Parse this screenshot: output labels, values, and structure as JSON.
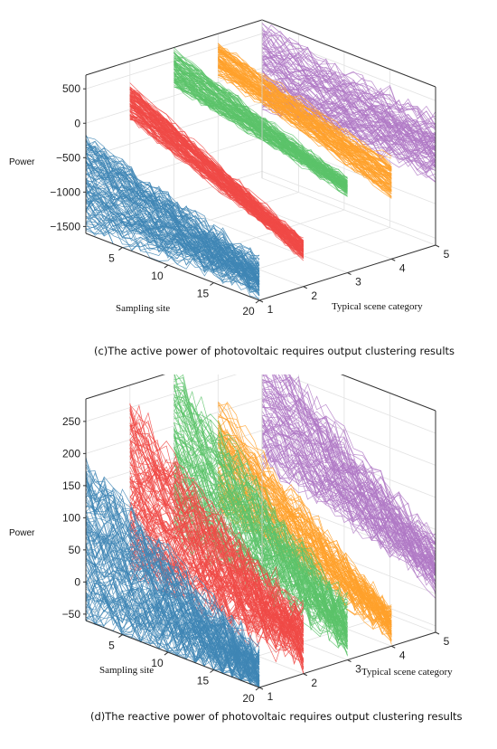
{
  "chart_data": [
    {
      "type": "line",
      "caption": "(c)The active power of photovoltaic requires output clustering results",
      "xlabel": "Sampling site",
      "ylabel": "Power",
      "zlabel": "Typical scene category",
      "x_ticks": [
        "5",
        "10",
        "15",
        "20"
      ],
      "y_ticks": [
        "500",
        "0",
        "−500",
        "−1000",
        "−1500"
      ],
      "z_ticks": [
        "1",
        "2",
        "3",
        "4",
        "5"
      ],
      "xlim": [
        1,
        20
      ],
      "ylim": [
        -1600,
        700
      ],
      "zlim": [
        1,
        5
      ],
      "grid": true,
      "series": [
        {
          "category": 1,
          "color": "#3f86b5",
          "start_range": [
            -1500,
            -250
          ],
          "end_range": [
            -1500,
            -1050
          ],
          "line_count": 110
        },
        {
          "category": 2,
          "color": "#f04a46",
          "start_range": [
            -150,
            350
          ],
          "end_range": [
            -1200,
            -900
          ],
          "line_count": 110
        },
        {
          "category": 3,
          "color": "#5cc36a",
          "start_range": [
            150,
            650
          ],
          "end_range": [
            -450,
            -250
          ],
          "line_count": 100
        },
        {
          "category": 4,
          "color": "#ffa12b",
          "start_range": [
            100,
            550
          ],
          "end_range": [
            -750,
            -150
          ],
          "line_count": 90
        },
        {
          "category": 5,
          "color": "#b079c6",
          "start_range": [
            -500,
            600
          ],
          "end_range": [
            -600,
            300
          ],
          "line_count": 90
        }
      ]
    },
    {
      "type": "line",
      "caption": "(d)The reactive power of photovoltaic requires output clustering results",
      "xlabel": "Sampling site",
      "ylabel": "Power",
      "zlabel": "Typical scene category",
      "x_ticks": [
        "5",
        "10",
        "15",
        "20"
      ],
      "y_ticks": [
        "250",
        "200",
        "150",
        "100",
        "50",
        "0",
        "−50"
      ],
      "z_ticks": [
        "1",
        "2",
        "3",
        "4",
        "5"
      ],
      "xlim": [
        1,
        20
      ],
      "ylim": [
        -60,
        285
      ],
      "zlim": [
        1,
        5
      ],
      "grid": true,
      "series": [
        {
          "category": 1,
          "color": "#3f86b5",
          "start_range": [
            -60,
            180
          ],
          "end_range": [
            -55,
            -20
          ],
          "line_count": 110
        },
        {
          "category": 2,
          "color": "#f04a46",
          "start_range": [
            10,
            250
          ],
          "end_range": [
            -45,
            35
          ],
          "line_count": 110
        },
        {
          "category": 3,
          "color": "#5cc36a",
          "start_range": [
            40,
            280
          ],
          "end_range": [
            -40,
            20
          ],
          "line_count": 100
        },
        {
          "category": 4,
          "color": "#ffa12b",
          "start_range": [
            60,
            220
          ],
          "end_range": [
            -40,
            -10
          ],
          "line_count": 90
        },
        {
          "category": 5,
          "color": "#b079c6",
          "start_range": [
            100,
            280
          ],
          "end_range": [
            10,
            80
          ],
          "line_count": 90
        }
      ]
    }
  ]
}
